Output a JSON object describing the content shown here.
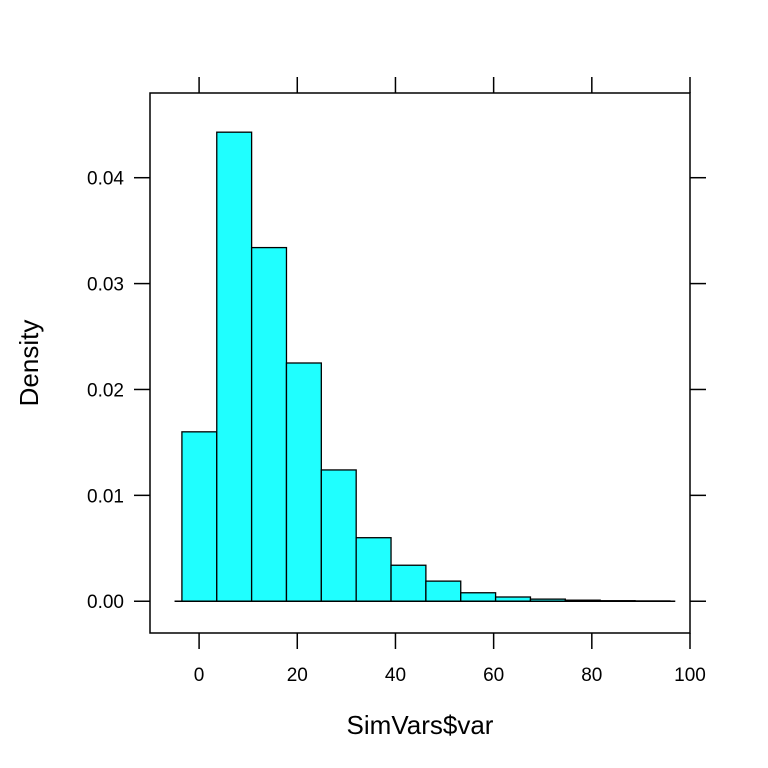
{
  "chart_data": {
    "type": "histogram",
    "title": "",
    "xlabel": "SimVars$var",
    "ylabel": "Density",
    "xlim": [
      -10,
      100
    ],
    "ylim": [
      -0.003,
      0.048
    ],
    "x_ticks": [
      0,
      20,
      40,
      60,
      80,
      100
    ],
    "x_tick_labels": [
      "0",
      "20",
      "40",
      "60",
      "80",
      "100"
    ],
    "y_ticks": [
      0.0,
      0.01,
      0.02,
      0.03,
      0.04
    ],
    "y_tick_labels": [
      "0.00",
      "0.01",
      "0.02",
      "0.03",
      "0.04"
    ],
    "bins": [
      {
        "x0": -3.5,
        "x1": 3.6,
        "density": 0.016
      },
      {
        "x0": 3.6,
        "x1": 10.7,
        "density": 0.0443
      },
      {
        "x0": 10.7,
        "x1": 17.8,
        "density": 0.0334
      },
      {
        "x0": 17.8,
        "x1": 24.9,
        "density": 0.0225
      },
      {
        "x0": 24.9,
        "x1": 32.0,
        "density": 0.0124
      },
      {
        "x0": 32.0,
        "x1": 39.1,
        "density": 0.006
      },
      {
        "x0": 39.1,
        "x1": 46.2,
        "density": 0.0034
      },
      {
        "x0": 46.2,
        "x1": 53.3,
        "density": 0.0019
      },
      {
        "x0": 53.3,
        "x1": 60.4,
        "density": 0.0008
      },
      {
        "x0": 60.4,
        "x1": 67.5,
        "density": 0.0004
      },
      {
        "x0": 67.5,
        "x1": 74.6,
        "density": 0.0002
      },
      {
        "x0": 74.6,
        "x1": 81.7,
        "density": 0.0001
      },
      {
        "x0": 81.7,
        "x1": 88.8,
        "density": 5e-05
      },
      {
        "x0": 88.8,
        "x1": 95.9,
        "density": 3e-05
      }
    ],
    "baseline": [
      -5,
      97
    ],
    "bar_color": "#1fffff",
    "grid": false,
    "legend": "none"
  }
}
